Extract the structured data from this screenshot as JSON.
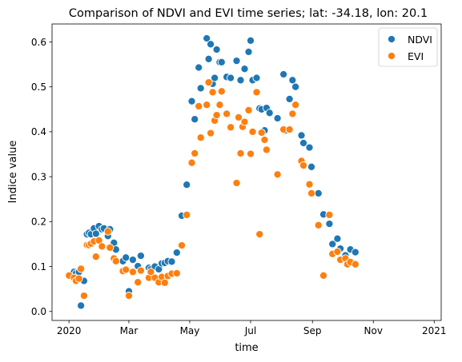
{
  "chart_data": {
    "type": "scatter",
    "title": "Comparison of NDVI and EVI time series; lat: -34.18, lon: 20.1",
    "xlabel": "time",
    "ylabel": "Indice value",
    "xlim": [
      "2019-12-15",
      "2021-01-08"
    ],
    "ylim": [
      -0.02,
      0.64
    ],
    "grid": false,
    "legend_position": "top-right",
    "x_ticks": [
      {
        "date": "2020-01-01",
        "label": "2020"
      },
      {
        "date": "2020-03-01",
        "label": "Mar"
      },
      {
        "date": "2020-05-01",
        "label": "May"
      },
      {
        "date": "2020-07-01",
        "label": "Jul"
      },
      {
        "date": "2020-09-01",
        "label": "Sep"
      },
      {
        "date": "2020-11-01",
        "label": "Nov"
      },
      {
        "date": "2021-01-01",
        "label": "2021"
      }
    ],
    "y_ticks": [
      {
        "value": 0.0,
        "label": "0.0"
      },
      {
        "value": 0.1,
        "label": "0.1"
      },
      {
        "value": 0.2,
        "label": "0.2"
      },
      {
        "value": 0.3,
        "label": "0.3"
      },
      {
        "value": 0.4,
        "label": "0.4"
      },
      {
        "value": 0.5,
        "label": "0.5"
      },
      {
        "value": 0.6,
        "label": "0.6"
      }
    ],
    "series": [
      {
        "name": "NDVI",
        "color": "#1f77b4",
        "points": [
          [
            "2020-01-01",
            0.081
          ],
          [
            "2020-01-06",
            0.088
          ],
          [
            "2020-01-08",
            0.085
          ],
          [
            "2020-01-11",
            0.088
          ],
          [
            "2020-01-13",
            0.013
          ],
          [
            "2020-01-16",
            0.068
          ],
          [
            "2020-01-19",
            0.172
          ],
          [
            "2020-01-21",
            0.175
          ],
          [
            "2020-01-23",
            0.172
          ],
          [
            "2020-01-26",
            0.185
          ],
          [
            "2020-01-28",
            0.173
          ],
          [
            "2020-01-31",
            0.19
          ],
          [
            "2020-02-03",
            0.183
          ],
          [
            "2020-02-05",
            0.185
          ],
          [
            "2020-02-09",
            0.168
          ],
          [
            "2020-02-11",
            0.183
          ],
          [
            "2020-02-15",
            0.153
          ],
          [
            "2020-02-17",
            0.138
          ],
          [
            "2020-02-24",
            0.112
          ],
          [
            "2020-02-27",
            0.12
          ],
          [
            "2020-03-01",
            0.045
          ],
          [
            "2020-03-05",
            0.115
          ],
          [
            "2020-03-10",
            0.101
          ],
          [
            "2020-03-13",
            0.124
          ],
          [
            "2020-03-21",
            0.097
          ],
          [
            "2020-03-23",
            0.094
          ],
          [
            "2020-03-27",
            0.1
          ],
          [
            "2020-03-31",
            0.094
          ],
          [
            "2020-04-03",
            0.107
          ],
          [
            "2020-04-06",
            0.108
          ],
          [
            "2020-04-09",
            0.112
          ],
          [
            "2020-04-13",
            0.111
          ],
          [
            "2020-04-18",
            0.131
          ],
          [
            "2020-04-23",
            0.213
          ],
          [
            "2020-04-28",
            0.282
          ],
          [
            "2020-05-03",
            0.468
          ],
          [
            "2020-05-06",
            0.428
          ],
          [
            "2020-05-10",
            0.543
          ],
          [
            "2020-05-12",
            0.497
          ],
          [
            "2020-05-18",
            0.608
          ],
          [
            "2020-05-20",
            0.562
          ],
          [
            "2020-05-22",
            0.595
          ],
          [
            "2020-05-24",
            0.507
          ],
          [
            "2020-05-26",
            0.52
          ],
          [
            "2020-05-28",
            0.583
          ],
          [
            "2020-05-31",
            0.555
          ],
          [
            "2020-06-02",
            0.555
          ],
          [
            "2020-06-07",
            0.522
          ],
          [
            "2020-06-11",
            0.52
          ],
          [
            "2020-06-17",
            0.558
          ],
          [
            "2020-06-21",
            0.515
          ],
          [
            "2020-06-25",
            0.54
          ],
          [
            "2020-06-29",
            0.578
          ],
          [
            "2020-07-01",
            0.603
          ],
          [
            "2020-07-03",
            0.515
          ],
          [
            "2020-07-07",
            0.52
          ],
          [
            "2020-07-10",
            0.452
          ],
          [
            "2020-07-12",
            0.45
          ],
          [
            "2020-07-15",
            0.403
          ],
          [
            "2020-07-17",
            0.453
          ],
          [
            "2020-07-20",
            0.442
          ],
          [
            "2020-07-28",
            0.43
          ],
          [
            "2020-08-03",
            0.528
          ],
          [
            "2020-08-05",
            0.403
          ],
          [
            "2020-08-09",
            0.473
          ],
          [
            "2020-08-12",
            0.515
          ],
          [
            "2020-08-15",
            0.5
          ],
          [
            "2020-08-21",
            0.392
          ],
          [
            "2020-08-23",
            0.375
          ],
          [
            "2020-08-29",
            0.365
          ],
          [
            "2020-08-31",
            0.322
          ],
          [
            "2020-09-07",
            0.263
          ],
          [
            "2020-09-12",
            0.216
          ],
          [
            "2020-09-18",
            0.195
          ],
          [
            "2020-09-21",
            0.15
          ],
          [
            "2020-09-26",
            0.162
          ],
          [
            "2020-09-29",
            0.14
          ],
          [
            "2020-10-04",
            0.125
          ],
          [
            "2020-10-06",
            0.11
          ],
          [
            "2020-10-09",
            0.138
          ],
          [
            "2020-10-14",
            0.132
          ]
        ]
      },
      {
        "name": "EVI",
        "color": "#ff7f0e",
        "points": [
          [
            "2020-01-01",
            0.08
          ],
          [
            "2020-01-06",
            0.075
          ],
          [
            "2020-01-08",
            0.068
          ],
          [
            "2020-01-11",
            0.073
          ],
          [
            "2020-01-13",
            0.095
          ],
          [
            "2020-01-16",
            0.035
          ],
          [
            "2020-01-19",
            0.148
          ],
          [
            "2020-01-21",
            0.148
          ],
          [
            "2020-01-23",
            0.151
          ],
          [
            "2020-01-26",
            0.156
          ],
          [
            "2020-01-28",
            0.122
          ],
          [
            "2020-01-31",
            0.158
          ],
          [
            "2020-02-03",
            0.145
          ],
          [
            "2020-02-09",
            0.178
          ],
          [
            "2020-02-11",
            0.142
          ],
          [
            "2020-02-15",
            0.118
          ],
          [
            "2020-02-17",
            0.112
          ],
          [
            "2020-02-24",
            0.09
          ],
          [
            "2020-02-27",
            0.093
          ],
          [
            "2020-03-01",
            0.035
          ],
          [
            "2020-03-05",
            0.088
          ],
          [
            "2020-03-10",
            0.065
          ],
          [
            "2020-03-13",
            0.091
          ],
          [
            "2020-03-21",
            0.075
          ],
          [
            "2020-03-23",
            0.088
          ],
          [
            "2020-03-27",
            0.075
          ],
          [
            "2020-03-31",
            0.065
          ],
          [
            "2020-04-03",
            0.077
          ],
          [
            "2020-04-06",
            0.064
          ],
          [
            "2020-04-09",
            0.079
          ],
          [
            "2020-04-13",
            0.084
          ],
          [
            "2020-04-18",
            0.085
          ],
          [
            "2020-04-23",
            0.147
          ],
          [
            "2020-04-28",
            0.215
          ],
          [
            "2020-05-03",
            0.331
          ],
          [
            "2020-05-06",
            0.352
          ],
          [
            "2020-05-10",
            0.457
          ],
          [
            "2020-05-12",
            0.387
          ],
          [
            "2020-05-18",
            0.46
          ],
          [
            "2020-05-20",
            0.51
          ],
          [
            "2020-05-22",
            0.397
          ],
          [
            "2020-05-24",
            0.488
          ],
          [
            "2020-05-26",
            0.425
          ],
          [
            "2020-05-28",
            0.437
          ],
          [
            "2020-05-31",
            0.46
          ],
          [
            "2020-06-02",
            0.49
          ],
          [
            "2020-06-07",
            0.44
          ],
          [
            "2020-06-11",
            0.41
          ],
          [
            "2020-06-17",
            0.286
          ],
          [
            "2020-06-19",
            0.432
          ],
          [
            "2020-06-21",
            0.352
          ],
          [
            "2020-06-23",
            0.411
          ],
          [
            "2020-06-25",
            0.422
          ],
          [
            "2020-06-29",
            0.448
          ],
          [
            "2020-07-01",
            0.351
          ],
          [
            "2020-07-03",
            0.4
          ],
          [
            "2020-07-07",
            0.488
          ],
          [
            "2020-07-10",
            0.172
          ],
          [
            "2020-07-12",
            0.398
          ],
          [
            "2020-07-15",
            0.382
          ],
          [
            "2020-07-17",
            0.36
          ],
          [
            "2020-07-28",
            0.305
          ],
          [
            "2020-08-03",
            0.405
          ],
          [
            "2020-08-09",
            0.405
          ],
          [
            "2020-08-12",
            0.44
          ],
          [
            "2020-08-15",
            0.46
          ],
          [
            "2020-08-21",
            0.335
          ],
          [
            "2020-08-23",
            0.325
          ],
          [
            "2020-08-29",
            0.283
          ],
          [
            "2020-08-31",
            0.263
          ],
          [
            "2020-09-07",
            0.192
          ],
          [
            "2020-09-12",
            0.08
          ],
          [
            "2020-09-18",
            0.215
          ],
          [
            "2020-09-21",
            0.128
          ],
          [
            "2020-09-26",
            0.133
          ],
          [
            "2020-09-29",
            0.115
          ],
          [
            "2020-10-04",
            0.118
          ],
          [
            "2020-10-06",
            0.105
          ],
          [
            "2020-10-09",
            0.11
          ],
          [
            "2020-10-14",
            0.105
          ]
        ]
      }
    ]
  }
}
